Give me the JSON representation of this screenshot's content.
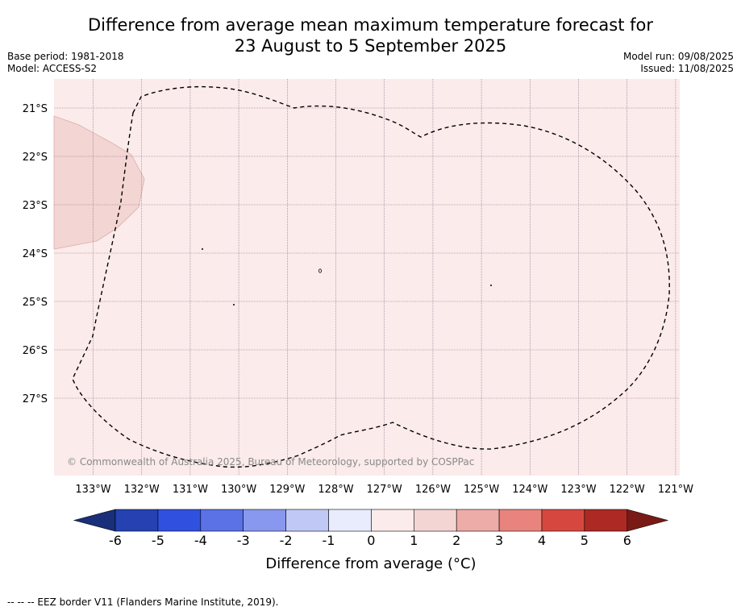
{
  "title": {
    "line1": "Difference from average mean maximum temperature forecast for",
    "line2": "23 August to 5 September 2025"
  },
  "meta": {
    "base_period": "Base period: 1981-2018",
    "model": "Model: ACCESS-S2",
    "model_run": "Model run: 09/08/2025",
    "issued": "Issued: 11/08/2025"
  },
  "map": {
    "background_color": "#fbebea",
    "warm_patch_color": "#f3d5d3",
    "lat_labels": [
      "21°S",
      "22°S",
      "23°S",
      "24°S",
      "25°S",
      "26°S",
      "27°S"
    ],
    "lon_labels": [
      "133°W",
      "132°W",
      "131°W",
      "130°W",
      "129°W",
      "128°W",
      "127°W",
      "126°W",
      "125°W",
      "124°W",
      "123°W",
      "122°W",
      "121°W"
    ],
    "copyright": "© Commonwealth of Australia 2025, Bureau of Meteorology, supported by COSPPac",
    "border_style": "dashed"
  },
  "colorbar": {
    "title": "Difference from average (°C)",
    "tick_labels": [
      "-6",
      "-5",
      "-4",
      "-3",
      "-2",
      "-1",
      "0",
      "1",
      "2",
      "3",
      "4",
      "5",
      "6"
    ],
    "colors": [
      "#1a2f7a",
      "#2541b2",
      "#3050e0",
      "#5a72e6",
      "#8898ee",
      "#c0c8f6",
      "#e8ecfc",
      "#fbebea",
      "#f3d5d3",
      "#edaca7",
      "#e8847d",
      "#d6483f",
      "#ad2a24",
      "#7a1a16"
    ]
  },
  "footnote": "--  --  -- EEZ border V11 (Flanders Marine Institute, 2019)."
}
